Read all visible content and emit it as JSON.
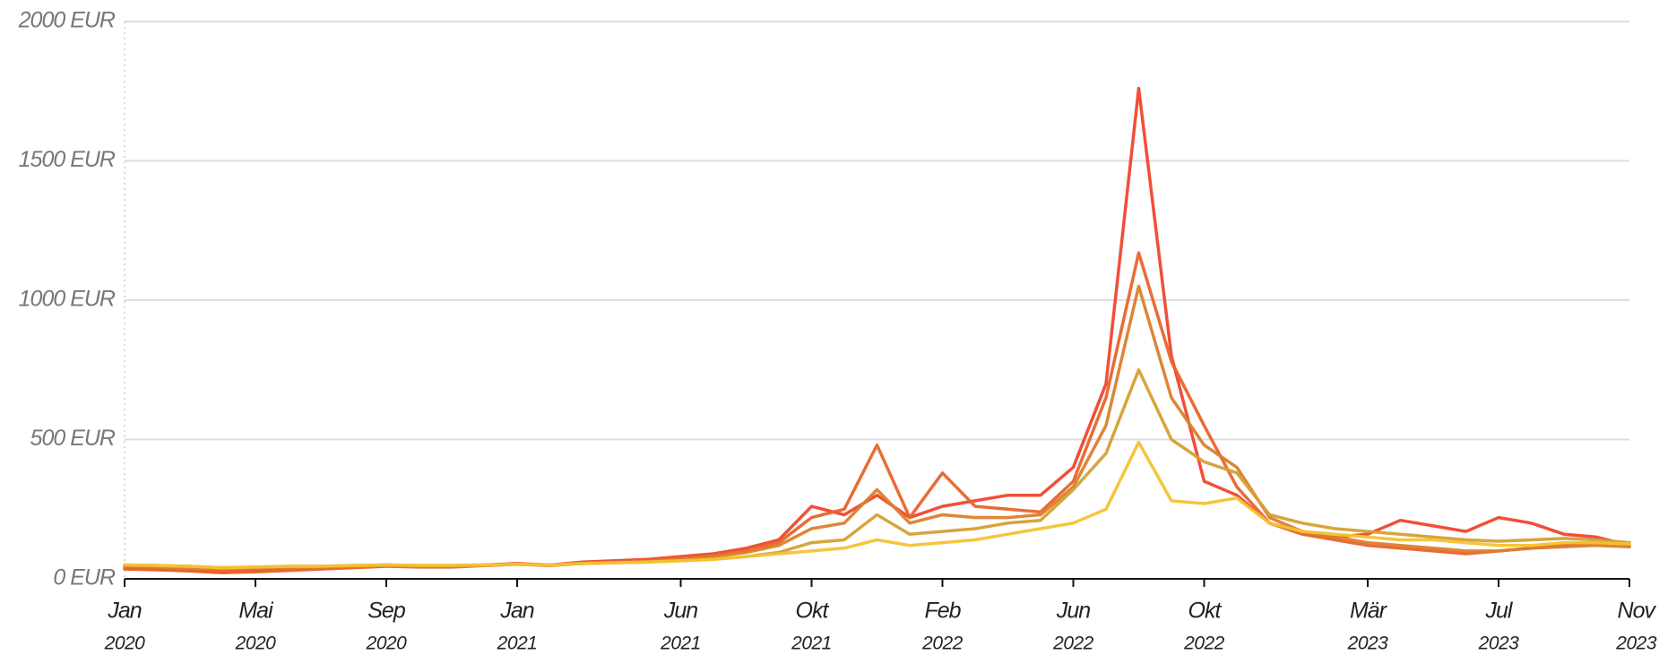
{
  "chart_data": {
    "type": "line",
    "x": [
      "2020-01",
      "2020-02",
      "2020-03",
      "2020-04",
      "2020-05",
      "2020-06",
      "2020-07",
      "2020-08",
      "2020-09",
      "2020-10",
      "2020-11",
      "2020-12",
      "2021-01",
      "2021-02",
      "2021-03",
      "2021-04",
      "2021-05",
      "2021-06",
      "2021-07",
      "2021-08",
      "2021-09",
      "2021-10",
      "2021-11",
      "2021-12",
      "2022-01",
      "2022-02",
      "2022-03",
      "2022-04",
      "2022-05",
      "2022-06",
      "2022-07",
      "2022-08",
      "2022-09",
      "2022-10",
      "2022-11",
      "2022-12",
      "2023-01",
      "2023-02",
      "2023-03",
      "2023-04",
      "2023-05",
      "2023-06",
      "2023-07",
      "2023-08",
      "2023-09",
      "2023-10",
      "2023-11"
    ],
    "series": [
      {
        "color": "#f0462c",
        "values": [
          40,
          35,
          30,
          25,
          30,
          35,
          40,
          45,
          50,
          45,
          45,
          50,
          55,
          50,
          60,
          65,
          70,
          80,
          90,
          110,
          140,
          260,
          230,
          300,
          220,
          260,
          280,
          300,
          300,
          400,
          700,
          1760,
          800,
          350,
          300,
          200,
          170,
          150,
          160,
          210,
          190,
          170,
          220,
          200,
          160,
          150,
          120
        ]
      },
      {
        "color": "#e8642a",
        "values": [
          35,
          32,
          28,
          22,
          25,
          30,
          35,
          40,
          45,
          42,
          42,
          48,
          52,
          48,
          55,
          60,
          65,
          75,
          85,
          100,
          130,
          220,
          250,
          480,
          220,
          380,
          260,
          250,
          240,
          350,
          650,
          1170,
          780,
          550,
          330,
          200,
          160,
          140,
          120,
          110,
          100,
          90,
          100,
          110,
          120,
          130,
          120
        ]
      },
      {
        "color": "#dc7e2c",
        "values": [
          45,
          42,
          38,
          35,
          38,
          40,
          42,
          45,
          48,
          45,
          45,
          48,
          52,
          50,
          55,
          58,
          62,
          70,
          80,
          95,
          120,
          180,
          200,
          320,
          200,
          230,
          220,
          220,
          230,
          330,
          550,
          1050,
          650,
          480,
          400,
          220,
          170,
          150,
          130,
          120,
          110,
          100,
          100,
          110,
          115,
          120,
          115
        ]
      },
      {
        "color": "#d4a032",
        "values": [
          50,
          48,
          45,
          40,
          42,
          45,
          45,
          48,
          50,
          48,
          48,
          50,
          52,
          50,
          55,
          58,
          60,
          65,
          70,
          80,
          95,
          130,
          140,
          230,
          160,
          170,
          180,
          200,
          210,
          320,
          450,
          750,
          500,
          420,
          380,
          230,
          200,
          180,
          170,
          160,
          150,
          140,
          135,
          140,
          145,
          140,
          130
        ]
      },
      {
        "color": "#f4c232",
        "values": [
          50,
          48,
          45,
          40,
          42,
          45,
          45,
          48,
          50,
          48,
          48,
          50,
          52,
          50,
          55,
          58,
          60,
          65,
          70,
          80,
          90,
          100,
          110,
          140,
          120,
          130,
          140,
          160,
          180,
          200,
          250,
          490,
          280,
          270,
          290,
          200,
          170,
          160,
          150,
          140,
          140,
          130,
          120,
          120,
          130,
          130,
          125
        ]
      }
    ],
    "xlim": [
      "2020-01",
      "2023-11"
    ],
    "xticks": [
      {
        "value": "2020-01",
        "label": [
          "Jan",
          "2020"
        ]
      },
      {
        "value": "2020-05",
        "label": [
          "Mai",
          "2020"
        ]
      },
      {
        "value": "2020-09",
        "label": [
          "Sep",
          "2020"
        ]
      },
      {
        "value": "2021-01",
        "label": [
          "Jan",
          "2021"
        ]
      },
      {
        "value": "2021-06",
        "label": [
          "Jun",
          "2021"
        ]
      },
      {
        "value": "2021-10",
        "label": [
          "Okt",
          "2021"
        ]
      },
      {
        "value": "2022-02",
        "label": [
          "Feb",
          "2022"
        ]
      },
      {
        "value": "2022-06",
        "label": [
          "Jun",
          "2022"
        ]
      },
      {
        "value": "2022-10",
        "label": [
          "Okt",
          "2022"
        ]
      },
      {
        "value": "2023-03",
        "label": [
          "Mär",
          "2023"
        ]
      },
      {
        "value": "2023-07",
        "label": [
          "Jul",
          "2023"
        ]
      },
      {
        "value": "2023-11",
        "label": [
          "Nov",
          "2023"
        ]
      }
    ],
    "ylim": [
      0,
      2000
    ],
    "yticks": [
      {
        "value": 0,
        "label": "0 EUR"
      },
      {
        "value": 500,
        "label": "500 EUR"
      },
      {
        "value": 1000,
        "label": "1000 EUR"
      },
      {
        "value": 1500,
        "label": "1500 EUR"
      },
      {
        "value": 2000,
        "label": "2000 EUR"
      }
    ],
    "grid": true
  }
}
